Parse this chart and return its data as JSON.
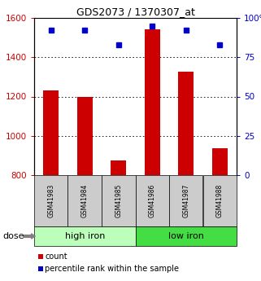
{
  "title": "GDS2073 / 1370307_at",
  "samples": [
    "GSM41983",
    "GSM41984",
    "GSM41985",
    "GSM41986",
    "GSM41987",
    "GSM41988"
  ],
  "bar_values": [
    1230,
    1200,
    875,
    1540,
    1325,
    935
  ],
  "percentile_values": [
    92,
    92,
    83,
    95,
    92,
    83
  ],
  "bar_color": "#cc0000",
  "percentile_color": "#0000cc",
  "ylim_left": [
    800,
    1600
  ],
  "ylim_right": [
    0,
    100
  ],
  "yticks_left": [
    800,
    1000,
    1200,
    1400,
    1600
  ],
  "yticks_right": [
    0,
    25,
    50,
    75,
    100
  ],
  "yticklabels_right": [
    "0",
    "25",
    "50",
    "75",
    "100%"
  ],
  "groups": [
    {
      "label": "high iron",
      "indices": [
        0,
        1,
        2
      ],
      "bg_color": "#bbffbb"
    },
    {
      "label": "low iron",
      "indices": [
        3,
        4,
        5
      ],
      "bg_color": "#44dd44"
    }
  ],
  "left_axis_color": "#cc0000",
  "right_axis_color": "#0000cc",
  "bar_bottom": 800,
  "grid_color": "#000000",
  "sample_box_color": "#cccccc",
  "dose_label": "dose",
  "legend_count_label": "count",
  "legend_percentile_label": "percentile rank within the sample"
}
